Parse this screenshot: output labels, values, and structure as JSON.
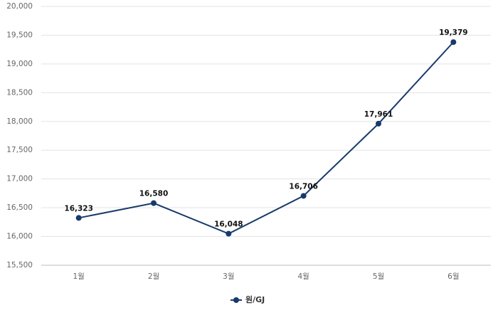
{
  "chart_data": {
    "type": "line",
    "categories": [
      "1월",
      "2월",
      "3월",
      "4월",
      "5월",
      "6월"
    ],
    "series": [
      {
        "name": "원/GJ",
        "color": "#173a6b",
        "values": [
          16323,
          16580,
          16048,
          16706,
          17961,
          19379
        ],
        "value_labels": [
          "16,323",
          "16,580",
          "16,048",
          "16,706",
          "17,961",
          "19,379"
        ]
      }
    ],
    "ylim": [
      15500,
      20000
    ],
    "yticks": [
      {
        "value": 15500,
        "label": "15,500"
      },
      {
        "value": 16000,
        "label": "16,000"
      },
      {
        "value": 16500,
        "label": "16,500"
      },
      {
        "value": 17000,
        "label": "17,000"
      },
      {
        "value": 17500,
        "label": "17,500"
      },
      {
        "value": 18000,
        "label": "18,000"
      },
      {
        "value": 18500,
        "label": "18,500"
      },
      {
        "value": 19000,
        "label": "19,000"
      },
      {
        "value": 19500,
        "label": "19,500"
      },
      {
        "value": 20000,
        "label": "20,000"
      }
    ],
    "grid": true,
    "legend": "bottom"
  }
}
